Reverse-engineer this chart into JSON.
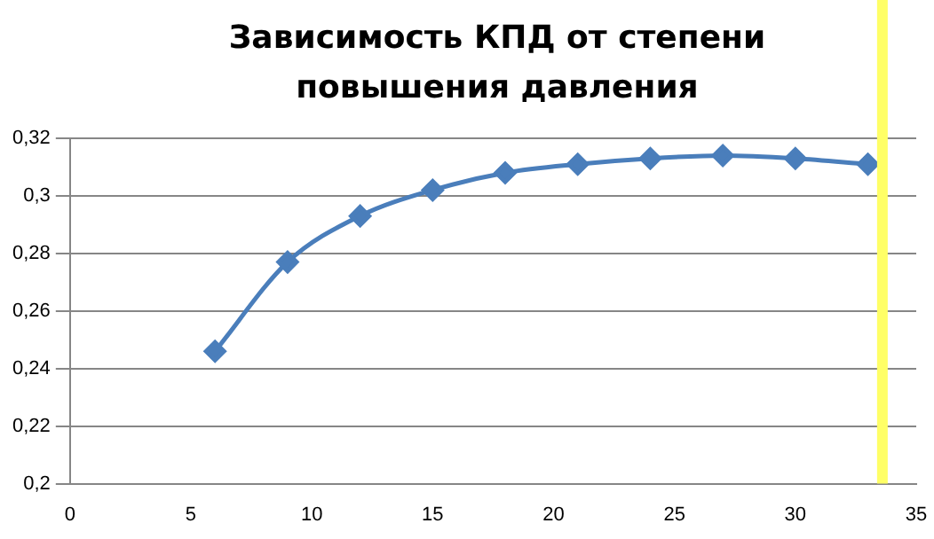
{
  "chart_data": {
    "type": "line",
    "title": "Зависимость КПД от степени повышения давления",
    "x": [
      6,
      9,
      12,
      15,
      18,
      21,
      24,
      27,
      30,
      33
    ],
    "series": [
      {
        "color": "#4a7ebb",
        "values": [
          0.246,
          0.277,
          0.293,
          0.302,
          0.308,
          0.311,
          0.313,
          0.314,
          0.313,
          0.311
        ]
      }
    ],
    "xlim": [
      0,
      35
    ],
    "xticks": [
      0,
      5,
      10,
      15,
      20,
      25,
      30,
      35
    ],
    "ylim": [
      0.2,
      0.32
    ],
    "yticks": [
      {
        "value": 0.2,
        "label": "0,2"
      },
      {
        "value": 0.22,
        "label": "0,22"
      },
      {
        "value": 0.24,
        "label": "0,24"
      },
      {
        "value": 0.26,
        "label": "0,26"
      },
      {
        "value": 0.28,
        "label": "0,28"
      },
      {
        "value": 0.3,
        "label": "0,3"
      },
      {
        "value": 0.32,
        "label": "0,32"
      }
    ],
    "ref_lines": [
      {
        "axis": "x",
        "value": 33.6,
        "color": "#ffff66"
      }
    ],
    "grid": "y",
    "legend": false,
    "marker": "diamond",
    "line_style": "solid"
  }
}
